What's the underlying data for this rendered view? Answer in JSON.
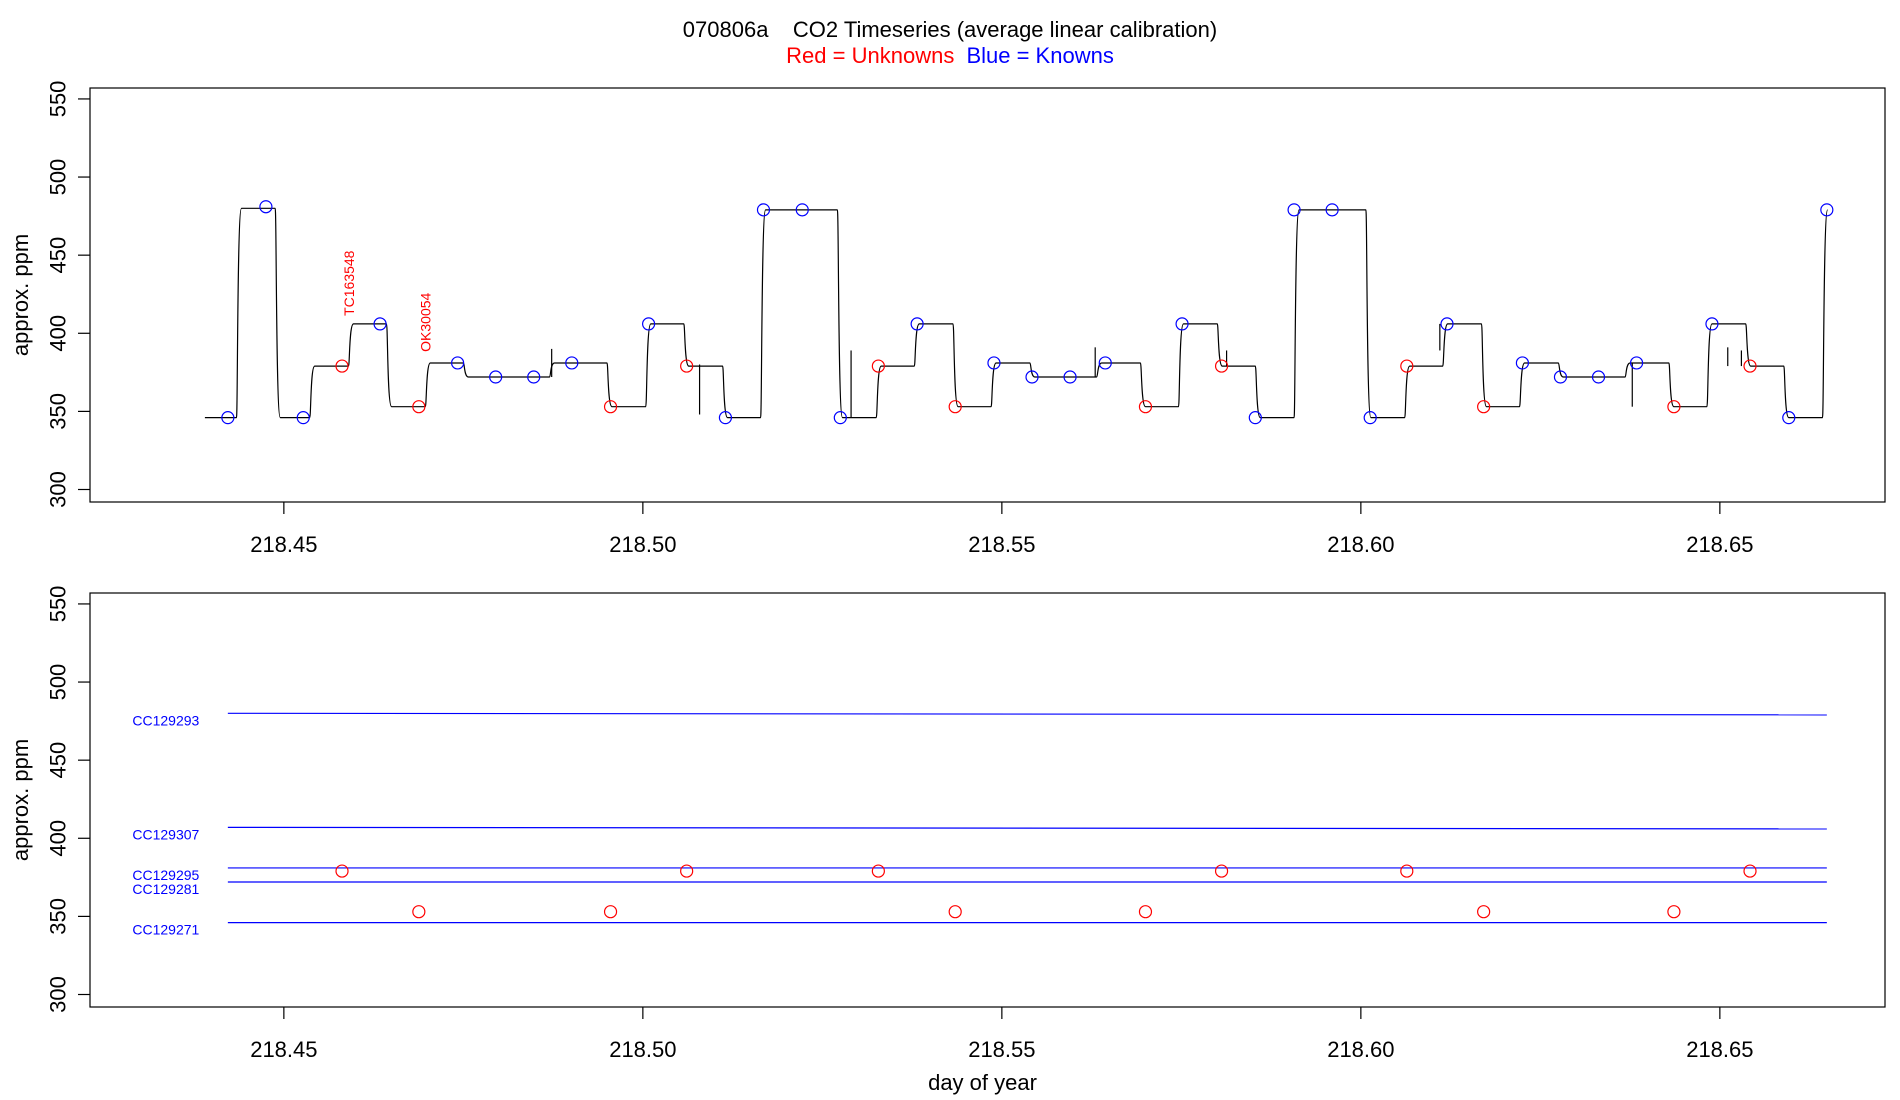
{
  "title": "070806a    CO2 Timeseries (average linear calibration)",
  "subtitle": {
    "red_text": "Red = Unknowns",
    "blue_text": "Blue = Knowns",
    "red_color": "#ff0000",
    "blue_color": "#0000ff"
  },
  "chart_data": [
    {
      "type": "line",
      "name": "timeseries",
      "xlabel": "",
      "ylabel": "approx. ppm",
      "xlim": [
        218.423,
        218.673
      ],
      "ylim": [
        292,
        557
      ],
      "xticks": [
        218.45,
        218.5,
        218.55,
        218.6,
        218.65
      ],
      "xtick_labels": [
        "218.45",
        "218.50",
        "218.55",
        "218.60",
        "218.65"
      ],
      "yticks": [
        300,
        350,
        400,
        450,
        500,
        550
      ],
      "ytick_labels": [
        "300",
        "350",
        "400",
        "450",
        "500",
        "550"
      ],
      "line_color": "#000000",
      "levels": [
        {
          "x0": 218.439,
          "x1": 218.4434,
          "y": 346
        },
        {
          "x0": 218.4434,
          "x1": 218.4488,
          "y": 480
        },
        {
          "x0": 218.4488,
          "x1": 218.4536,
          "y": 346
        },
        {
          "x0": 218.4536,
          "x1": 218.459,
          "y": 379
        },
        {
          "x0": 218.459,
          "x1": 218.4643,
          "y": 406
        },
        {
          "x0": 218.4643,
          "x1": 218.4697,
          "y": 353
        },
        {
          "x0": 218.4697,
          "x1": 218.475,
          "y": 381
        },
        {
          "x0": 218.475,
          "x1": 218.487,
          "y": 372
        },
        {
          "x0": 218.487,
          "x1": 218.495,
          "y": 381
        },
        {
          "x0": 218.495,
          "x1": 218.5004,
          "y": 353
        },
        {
          "x0": 218.5004,
          "x1": 218.5057,
          "y": 406
        },
        {
          "x0": 218.5057,
          "x1": 218.5111,
          "y": 379
        },
        {
          "x0": 218.5111,
          "x1": 218.5164,
          "y": 346
        },
        {
          "x0": 218.5164,
          "x1": 218.5271,
          "y": 479
        },
        {
          "x0": 218.5271,
          "x1": 218.5325,
          "y": 346
        },
        {
          "x0": 218.5325,
          "x1": 218.5378,
          "y": 379
        },
        {
          "x0": 218.5378,
          "x1": 218.5432,
          "y": 406
        },
        {
          "x0": 218.5432,
          "x1": 218.5485,
          "y": 353
        },
        {
          "x0": 218.5485,
          "x1": 218.5539,
          "y": 381
        },
        {
          "x0": 218.5539,
          "x1": 218.5632,
          "y": 372
        },
        {
          "x0": 218.5632,
          "x1": 218.5693,
          "y": 381
        },
        {
          "x0": 218.5693,
          "x1": 218.5746,
          "y": 353
        },
        {
          "x0": 218.5746,
          "x1": 218.58,
          "y": 406
        },
        {
          "x0": 218.58,
          "x1": 218.5853,
          "y": 379
        },
        {
          "x0": 218.5853,
          "x1": 218.5907,
          "y": 346
        },
        {
          "x0": 218.5907,
          "x1": 218.6007,
          "y": 479
        },
        {
          "x0": 218.6007,
          "x1": 218.6061,
          "y": 346
        },
        {
          "x0": 218.6061,
          "x1": 218.6114,
          "y": 379
        },
        {
          "x0": 218.6114,
          "x1": 218.6168,
          "y": 406
        },
        {
          "x0": 218.6168,
          "x1": 218.6221,
          "y": 353
        },
        {
          "x0": 218.6221,
          "x1": 218.6275,
          "y": 381
        },
        {
          "x0": 218.6275,
          "x1": 218.6368,
          "y": 372
        },
        {
          "x0": 218.6368,
          "x1": 218.6429,
          "y": 381
        },
        {
          "x0": 218.6429,
          "x1": 218.6482,
          "y": 353
        },
        {
          "x0": 218.6482,
          "x1": 218.6536,
          "y": 406
        },
        {
          "x0": 218.6536,
          "x1": 218.6589,
          "y": 379
        },
        {
          "x0": 218.6589,
          "x1": 218.6643,
          "y": 346
        },
        {
          "x0": 218.6643,
          "x1": 218.665,
          "y": 479
        }
      ],
      "spikes": [
        {
          "x": 218.4873,
          "y_low": 372,
          "y_high": 390
        },
        {
          "x": 218.5079,
          "y_low": 348,
          "y_high": 380
        },
        {
          "x": 218.529,
          "y_low": 346,
          "y_high": 389
        },
        {
          "x": 218.563,
          "y_low": 372,
          "y_high": 391
        },
        {
          "x": 218.5813,
          "y_low": 379,
          "y_high": 389
        },
        {
          "x": 218.611,
          "y_low": 389,
          "y_high": 406
        },
        {
          "x": 218.6378,
          "y_low": 353,
          "y_high": 381
        },
        {
          "x": 218.6511,
          "y_low": 379,
          "y_high": 391
        },
        {
          "x": 218.653,
          "y_low": 379,
          "y_high": 389
        }
      ],
      "knowns": {
        "color": "#0000ff",
        "points": [
          [
            218.4422,
            346
          ],
          [
            218.4475,
            481
          ],
          [
            218.4527,
            346
          ],
          [
            218.4634,
            406
          ],
          [
            218.4742,
            381
          ],
          [
            218.4795,
            372
          ],
          [
            218.4848,
            372
          ],
          [
            218.4901,
            381
          ],
          [
            218.5008,
            406
          ],
          [
            218.5115,
            346
          ],
          [
            218.5168,
            479
          ],
          [
            218.5222,
            479
          ],
          [
            218.5275,
            346
          ],
          [
            218.5382,
            406
          ],
          [
            218.5489,
            381
          ],
          [
            218.5542,
            372
          ],
          [
            218.5595,
            372
          ],
          [
            218.5644,
            381
          ],
          [
            218.5751,
            406
          ],
          [
            218.5853,
            346
          ],
          [
            218.5907,
            479
          ],
          [
            218.596,
            479
          ],
          [
            218.6013,
            346
          ],
          [
            218.612,
            406
          ],
          [
            218.6225,
            381
          ],
          [
            218.6278,
            372
          ],
          [
            218.6331,
            372
          ],
          [
            218.6384,
            381
          ],
          [
            218.6489,
            406
          ],
          [
            218.6596,
            346
          ],
          [
            218.6649,
            479
          ]
        ]
      },
      "unknowns": {
        "color": "#ff0000",
        "points": [
          [
            218.4581,
            379
          ],
          [
            218.4688,
            353
          ],
          [
            218.4955,
            353
          ],
          [
            218.5061,
            379
          ],
          [
            218.5328,
            379
          ],
          [
            218.5435,
            353
          ],
          [
            218.57,
            353
          ],
          [
            218.5806,
            379
          ],
          [
            218.6064,
            379
          ],
          [
            218.6171,
            353
          ],
          [
            218.6436,
            353
          ],
          [
            218.6542,
            379
          ]
        ]
      },
      "annotations": [
        {
          "text": "TC163548",
          "x": 218.4591,
          "y": 406,
          "color": "#ff0000"
        },
        {
          "text": "OK30054",
          "x": 218.4697,
          "y": 383,
          "color": "#ff0000"
        }
      ]
    },
    {
      "type": "line",
      "name": "references",
      "xlabel": "day of year",
      "ylabel": "approx. ppm",
      "xlim": [
        218.423,
        218.673
      ],
      "ylim": [
        292,
        557
      ],
      "xticks": [
        218.45,
        218.5,
        218.55,
        218.6,
        218.65
      ],
      "xtick_labels": [
        "218.45",
        "218.50",
        "218.55",
        "218.60",
        "218.65"
      ],
      "yticks": [
        300,
        350,
        400,
        450,
        500,
        550
      ],
      "ytick_labels": [
        "300",
        "350",
        "400",
        "450",
        "500",
        "550"
      ],
      "reference_color": "#0000ff",
      "reference_lines": [
        {
          "label": "CC129293",
          "x0": 218.4422,
          "x1": 218.6649,
          "y0": 480,
          "y1": 479
        },
        {
          "label": "CC129307",
          "x0": 218.4422,
          "x1": 218.6649,
          "y0": 407,
          "y1": 406
        },
        {
          "label": "CC129295",
          "x0": 218.4422,
          "x1": 218.6649,
          "y0": 381,
          "y1": 381
        },
        {
          "label": "CC129281",
          "x0": 218.4422,
          "x1": 218.6649,
          "y0": 372,
          "y1": 372
        },
        {
          "label": "CC129271",
          "x0": 218.4422,
          "x1": 218.6649,
          "y0": 346,
          "y1": 346
        }
      ],
      "unknowns": {
        "color": "#ff0000",
        "points": [
          [
            218.4581,
            379
          ],
          [
            218.4688,
            353
          ],
          [
            218.4955,
            353
          ],
          [
            218.5061,
            379
          ],
          [
            218.5328,
            379
          ],
          [
            218.5435,
            353
          ],
          [
            218.57,
            353
          ],
          [
            218.5806,
            379
          ],
          [
            218.6064,
            379
          ],
          [
            218.6171,
            353
          ],
          [
            218.6436,
            353
          ],
          [
            218.6542,
            379
          ]
        ]
      }
    }
  ]
}
